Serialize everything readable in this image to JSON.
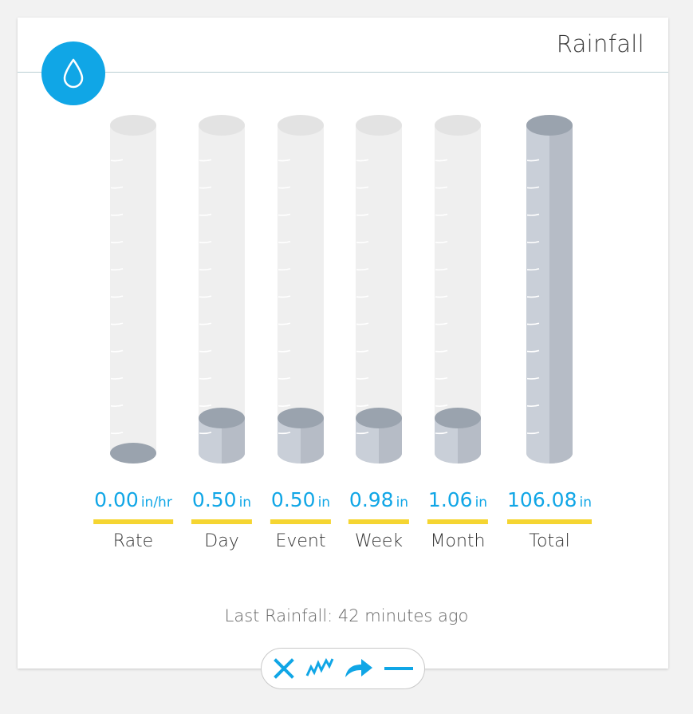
{
  "widget": {
    "title": "Rainfall",
    "icon": "water-drop-icon",
    "accent_color": "#10a6e6",
    "underline_color": "#f5d531"
  },
  "gauges": [
    {
      "label": "Rate",
      "value": "0.00",
      "unit": "in/hr",
      "fill_fraction": 0.0
    },
    {
      "label": "Day",
      "value": "0.50",
      "unit": "in",
      "fill_fraction": 0.1
    },
    {
      "label": "Event",
      "value": "0.50",
      "unit": "in",
      "fill_fraction": 0.1
    },
    {
      "label": "Week",
      "value": "0.98",
      "unit": "in",
      "fill_fraction": 0.1
    },
    {
      "label": "Month",
      "value": "1.06",
      "unit": "in",
      "fill_fraction": 0.1
    },
    {
      "label": "Total",
      "value": "106.08",
      "unit": "in",
      "fill_fraction": 1.0
    }
  ],
  "footer": {
    "last_rainfall": "Last Rainfall: 42 minutes ago"
  },
  "toolbar": {
    "buttons": [
      {
        "name": "close-icon",
        "color": "#10a6e6"
      },
      {
        "name": "chart-icon",
        "color": "#10a6e6"
      },
      {
        "name": "share-icon",
        "color": "#10a6e6"
      },
      {
        "name": "minimize-icon",
        "color": "#10a6e6"
      }
    ]
  }
}
